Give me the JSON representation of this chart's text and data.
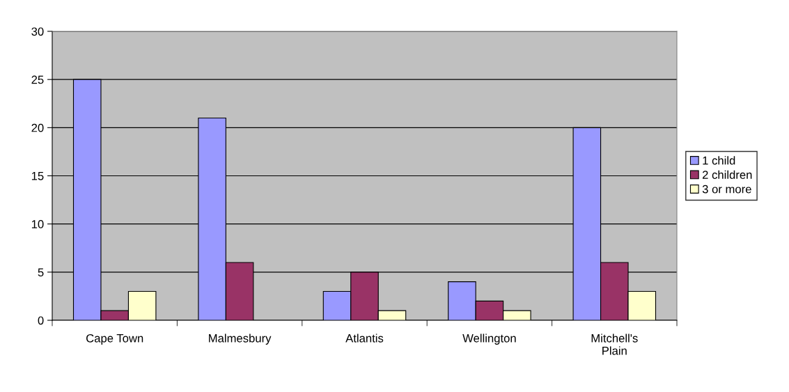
{
  "chart_data": {
    "type": "bar",
    "categories": [
      "Cape Town",
      "Malmesbury",
      "Atlantis",
      "Wellington",
      "Mitchell's\nPlain"
    ],
    "series": [
      {
        "name": "1 child",
        "color": "#9999ff",
        "values": [
          25,
          21,
          3,
          4,
          20
        ]
      },
      {
        "name": "2 children",
        "color": "#993366",
        "values": [
          1,
          6,
          5,
          2,
          6
        ]
      },
      {
        "name": "3 or more",
        "color": "#ffffcc",
        "values": [
          3,
          null,
          1,
          1,
          3
        ]
      }
    ],
    "ylim": [
      0,
      30
    ],
    "yticks": [
      0,
      5,
      10,
      15,
      20,
      25,
      30
    ],
    "grid": "y",
    "legend": "right"
  }
}
